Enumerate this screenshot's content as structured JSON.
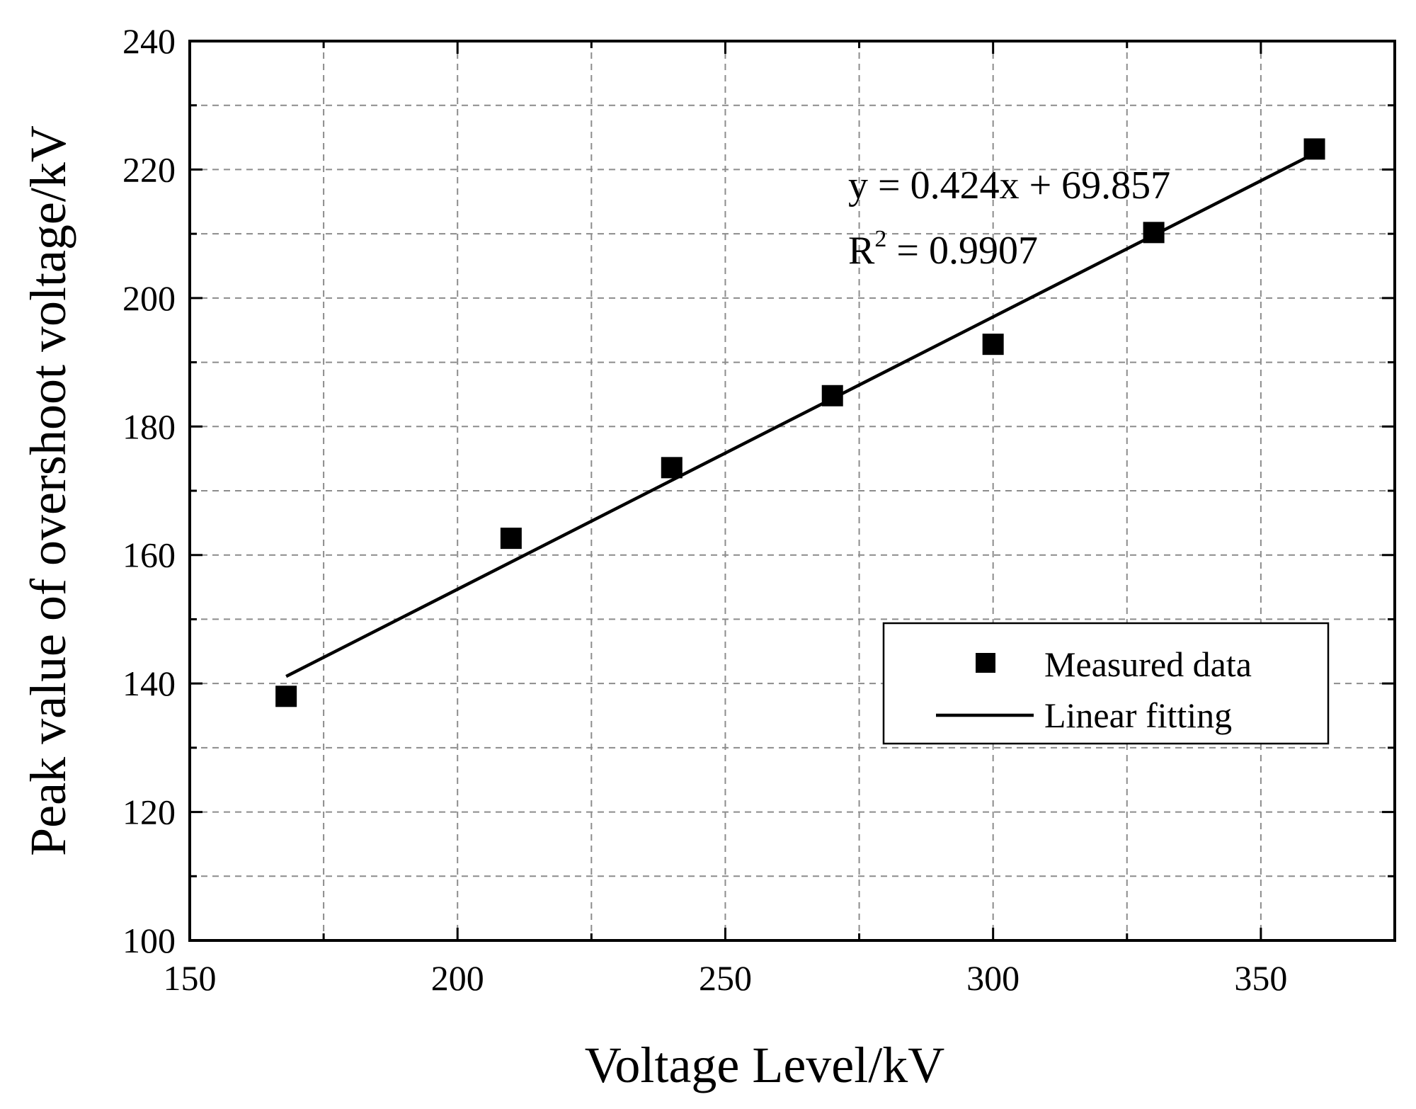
{
  "chart_data": {
    "type": "scatter",
    "title": "",
    "xlabel": "Voltage Level/kV",
    "ylabel": "Peak value of overshoot voltage/kV",
    "xlim": [
      150,
      375
    ],
    "ylim": [
      100,
      240
    ],
    "x_major_ticks": [
      150,
      200,
      250,
      300,
      350
    ],
    "x_minor_ticks": [
      175,
      225,
      275,
      325,
      375
    ],
    "y_major_ticks": [
      100,
      120,
      140,
      160,
      180,
      200,
      220,
      240
    ],
    "y_minor_ticks": [
      110,
      130,
      150,
      170,
      190,
      210,
      230
    ],
    "x_tick_labels": [
      "150",
      "200",
      "250",
      "300",
      "350"
    ],
    "y_tick_labels": [
      "100",
      "120",
      "140",
      "160",
      "180",
      "200",
      "220",
      "240"
    ],
    "grid": true,
    "series": [
      {
        "name": "Measured data",
        "kind": "scatter",
        "marker": "square",
        "x": [
          168,
          210,
          240,
          270,
          300,
          330,
          360
        ],
        "y": [
          138,
          162.6,
          173.6,
          184.8,
          192.8,
          210.2,
          223.2
        ]
      },
      {
        "name": "Linear fitting",
        "kind": "line",
        "slope": 0.424,
        "intercept": 69.857,
        "x": [
          168,
          360
        ],
        "y": [
          141.1,
          222.5
        ]
      }
    ],
    "annotations": {
      "equation": "y = 0.424x + 69.857",
      "r2_prefix": "R",
      "r2_sup": "2",
      "r2_value": " = 0.9907"
    },
    "legend": {
      "position": "lower-right",
      "entries": [
        "Measured data",
        "Linear fitting"
      ]
    },
    "colors": {
      "marker": "#000000",
      "line": "#000000",
      "grid": "#8c8c8c",
      "axes": "#000000"
    }
  }
}
